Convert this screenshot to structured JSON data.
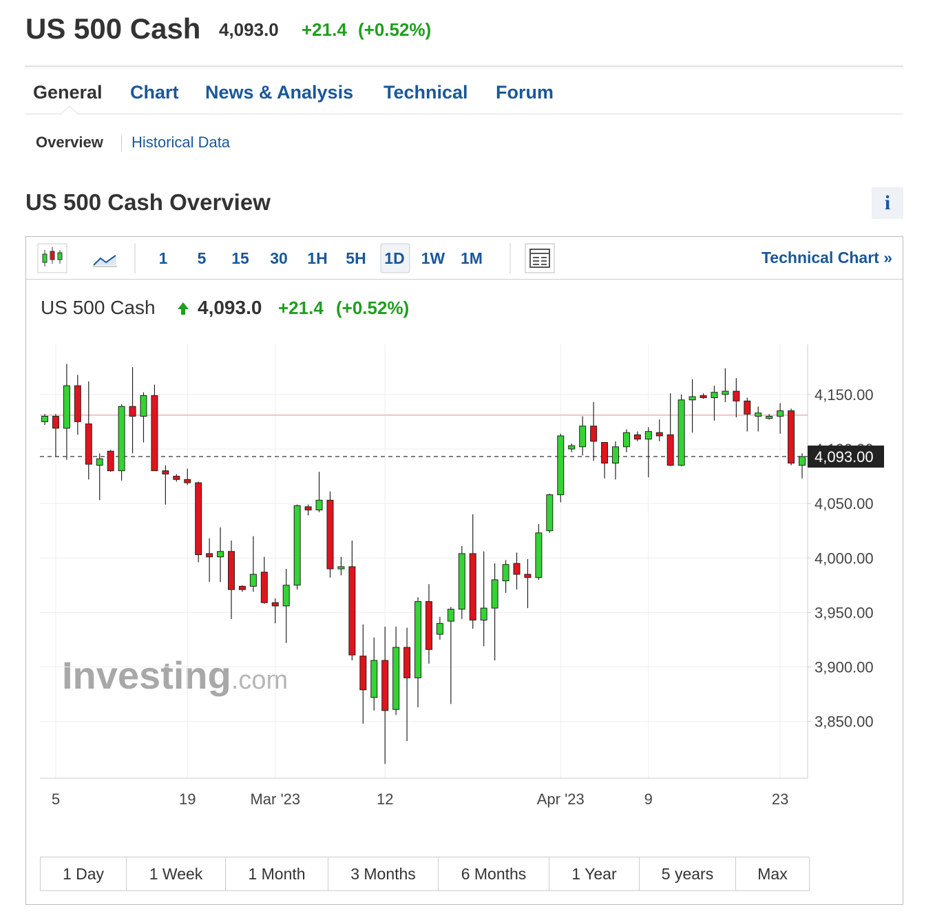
{
  "header": {
    "title": "US 500 Cash",
    "price": "4,093.0",
    "change": "+21.4",
    "change_pct": "(+0.52%)"
  },
  "tabs": [
    "General",
    "Chart",
    "News & Analysis",
    "Technical",
    "Forum"
  ],
  "subtabs": [
    "Overview",
    "Historical Data"
  ],
  "section": {
    "title": "US 500 Cash Overview",
    "info": "i"
  },
  "toolbar": {
    "intervals": [
      "1",
      "5",
      "15",
      "30",
      "1H",
      "5H",
      "1D",
      "1W",
      "1M"
    ],
    "link": "Technical Chart »"
  },
  "chart_header": {
    "name": "US 500 Cash",
    "price": "4,093.0",
    "change": "+21.4",
    "change_pct": "(+0.52%)"
  },
  "watermark": [
    "Investing",
    ".com"
  ],
  "chart_data": {
    "type": "candlestick",
    "categories": [
      null,
      "5",
      null,
      null,
      null,
      null,
      null,
      null,
      null,
      null,
      null,
      null,
      null,
      "19",
      null,
      null,
      null,
      null,
      null,
      null,
      null,
      "Mar '23",
      null,
      null,
      null,
      null,
      null,
      null,
      null,
      null,
      null,
      "12",
      null,
      null,
      null,
      null,
      null,
      null,
      null,
      null,
      null,
      null,
      null,
      null,
      null,
      null,
      null,
      "Apr '23",
      null,
      null,
      null,
      null,
      null,
      null,
      null,
      "9",
      null,
      null,
      null,
      null,
      null,
      null,
      null,
      null,
      null,
      null,
      null,
      "23",
      null,
      null
    ],
    "open": [
      4125,
      4130,
      4119,
      4158,
      4123,
      4085,
      4098,
      4080,
      4139,
      4130,
      4149,
      4080,
      4075,
      4072,
      4069,
      4004,
      4001,
      4006,
      3974,
      3974,
      3987,
      3959,
      3956,
      3975,
      4047,
      4044,
      4053,
      3990,
      3992,
      3910,
      3872,
      3906,
      3861,
      3918,
      3890,
      3960,
      3930,
      3942,
      3953,
      4004,
      3943,
      3954,
      3979,
      3995,
      3985,
      3982,
      4025,
      4058,
      4100,
      4102,
      4121,
      4106,
      4087,
      4102,
      4113,
      4109,
      4115,
      4113,
      4085,
      4145,
      4149,
      4147,
      4150,
      4153,
      4144,
      4130,
      4128,
      4130,
      4135,
      4085
    ],
    "high": [
      4132,
      4132,
      4178,
      4168,
      4162,
      4096,
      4099,
      4141,
      4175,
      4152,
      4159,
      4085,
      4077,
      4082,
      4070,
      4018,
      4028,
      4016,
      3975,
      4020,
      4001,
      3963,
      3990,
      4049,
      4049,
      4079,
      4061,
      4001,
      4016,
      3939,
      3927,
      3937,
      3937,
      3936,
      3964,
      3976,
      3946,
      3955,
      4011,
      4040,
      4006,
      3995,
      3998,
      4005,
      3999,
      4031,
      4059,
      4114,
      4105,
      4130,
      4143,
      4106,
      4107,
      4118,
      4116,
      4120,
      4127,
      4151,
      4150,
      4164,
      4151,
      4158,
      4174,
      4165,
      4147,
      4139,
      4132,
      4142,
      4137,
      4096
    ],
    "low": [
      4122,
      4093,
      4090,
      4113,
      4072,
      4053,
      4079,
      4071,
      4096,
      4106,
      4080,
      4049,
      4070,
      4067,
      3996,
      3978,
      3978,
      3944,
      3969,
      3969,
      3958,
      3940,
      3922,
      3971,
      4039,
      4042,
      3982,
      3984,
      3906,
      3848,
      3860,
      3811,
      3856,
      3832,
      3863,
      3903,
      3925,
      3866,
      3944,
      3935,
      3919,
      3906,
      3968,
      3971,
      3954,
      3980,
      4023,
      4051,
      4097,
      4094,
      4089,
      4073,
      4072,
      4097,
      4107,
      4074,
      4107,
      4084,
      4084,
      4115,
      4146,
      4126,
      4143,
      4129,
      4116,
      4116,
      4127,
      4114,
      4085,
      4073
    ],
    "close": [
      4130,
      4119,
      4158,
      4125,
      4086,
      4091,
      4080,
      4139,
      4130,
      4149,
      4080,
      4077,
      4072,
      4069,
      4003,
      4001,
      4006,
      3971,
      3971,
      3985,
      3959,
      3956,
      3975,
      4048,
      4044,
      4053,
      3990,
      3992,
      3911,
      3879,
      3906,
      3860,
      3918,
      3890,
      3960,
      3916,
      3940,
      3953,
      4004,
      3943,
      3954,
      3980,
      3994,
      3985,
      3982,
      4023,
      4058,
      4112,
      4103,
      4121,
      4107,
      4087,
      4102,
      4115,
      4109,
      4116,
      4112,
      4085,
      4145,
      4148,
      4147,
      4152,
      4153,
      4144,
      4132,
      4133,
      4130,
      4135,
      4087,
      4093
    ],
    "up_color": "#33d433",
    "down_color": "#e0141c",
    "ylim": [
      3798,
      4196
    ],
    "yticks": [
      {
        "value": 3850,
        "label": "3,850.00"
      },
      {
        "value": 3900,
        "label": "3,900.00"
      },
      {
        "value": 3950,
        "label": "3,950.00"
      },
      {
        "value": 4000,
        "label": "4,000.00"
      },
      {
        "value": 4050,
        "label": "4,050.00"
      },
      {
        "value": 4100,
        "label": "4,100.00"
      },
      {
        "value": 4150,
        "label": "4,150.00"
      }
    ],
    "reference_line": 4131,
    "last_price": {
      "value": 4093,
      "label": "4,093.00"
    },
    "grid": true
  },
  "range_buttons": [
    "1 Day",
    "1 Week",
    "1 Month",
    "3 Months",
    "6 Months",
    "1 Year",
    "5 years",
    "Max"
  ]
}
